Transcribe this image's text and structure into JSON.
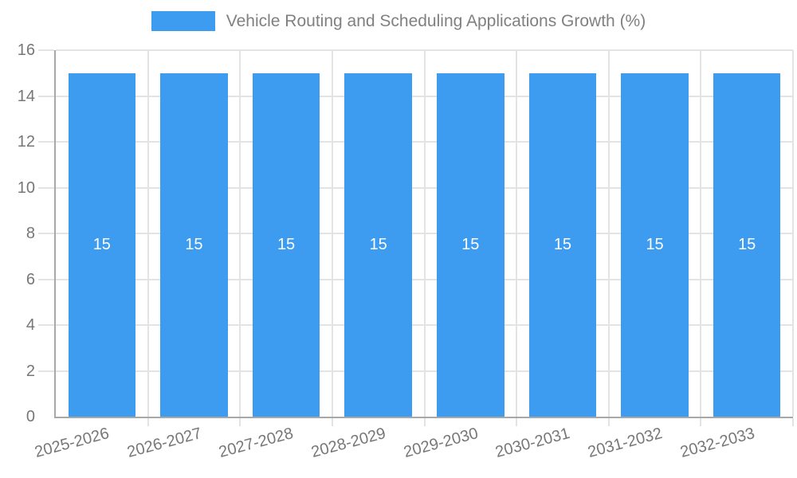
{
  "chart_data": {
    "type": "bar",
    "title": "Vehicle Routing and Scheduling Applications Growth (%)",
    "legend": {
      "label": "Vehicle Routing and Scheduling Applications Growth (%)",
      "position": "top",
      "swatch_color": "#3d9bf0"
    },
    "categories": [
      "2025-2026",
      "2026-2027",
      "2027-2028",
      "2028-2029",
      "2029-2030",
      "2030-2031",
      "2031-2032",
      "2032-2033"
    ],
    "values": [
      15,
      15,
      15,
      15,
      15,
      15,
      15,
      15
    ],
    "bar_value_labels": [
      "15",
      "15",
      "15",
      "15",
      "15",
      "15",
      "15",
      "15"
    ],
    "xlabel": "",
    "ylabel": "",
    "ylim": [
      0,
      16
    ],
    "yticks": [
      0,
      2,
      4,
      6,
      8,
      10,
      12,
      14,
      16
    ],
    "grid": "on",
    "x_label_rotation_deg": -15,
    "colors": {
      "bar": "#3d9bf0",
      "bar_value_label": "#ffffff",
      "axis_line": "#a8a8a8",
      "gridline": "#e3e3e3",
      "tick_label": "#777777",
      "title": "#808080"
    }
  }
}
